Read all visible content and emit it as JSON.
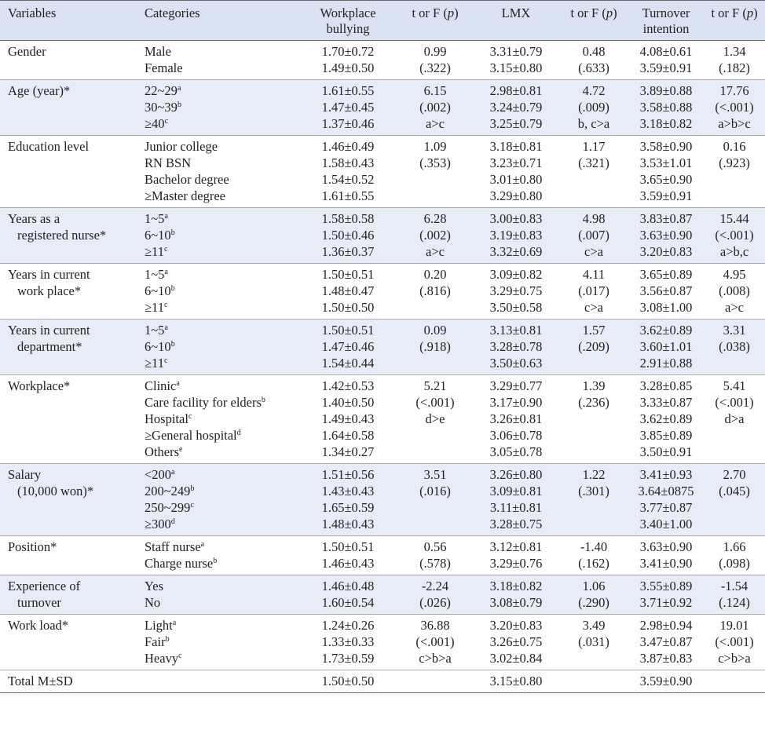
{
  "headers": {
    "variables": "Variables",
    "categories": "Categories",
    "bullying_1": "Workplace",
    "bullying_2": "bullying",
    "test1_pre": "t or F (",
    "test1_p": "p",
    "test1_post": ")",
    "lmx": "LMX",
    "test2_pre": "t or F (",
    "test2_p": "p",
    "test2_post": ")",
    "turnover_1": "Turnover",
    "turnover_2": "intention",
    "test3_pre": "t or F (",
    "test3_p": "p",
    "test3_post": ")"
  },
  "rows": [
    {
      "var": [
        "Gender"
      ],
      "cats": [
        {
          "t": "Male",
          "s": ""
        },
        {
          "t": "Female",
          "s": ""
        }
      ],
      "wb": [
        "1.70±0.72",
        "1.49±0.50"
      ],
      "t1": [
        "0.99",
        "(.322)"
      ],
      "lmx": [
        "3.31±0.79",
        "3.15±0.80"
      ],
      "t2": [
        "0.48",
        "(.633)"
      ],
      "ti": [
        "4.08±0.61",
        "3.59±0.91"
      ],
      "t3": [
        "1.34",
        "(.182)"
      ]
    },
    {
      "var": [
        "Age (year)*"
      ],
      "cats": [
        {
          "t": "22~29",
          "s": "a"
        },
        {
          "t": "30~39",
          "s": "b"
        },
        {
          "t": "≥40",
          "s": "c"
        }
      ],
      "wb": [
        "1.61±0.55",
        "1.47±0.45",
        "1.37±0.46"
      ],
      "t1": [
        "6.15",
        "(.002)",
        "a>c"
      ],
      "lmx": [
        "2.98±0.81",
        "3.24±0.79",
        "3.25±0.79"
      ],
      "t2": [
        "4.72",
        "(.009)",
        "b, c>a"
      ],
      "ti": [
        "3.89±0.88",
        "3.58±0.88",
        "3.18±0.82"
      ],
      "t3": [
        "17.76",
        "(<.001)",
        "a>b>c"
      ]
    },
    {
      "var": [
        "Education level"
      ],
      "cats": [
        {
          "t": "Junior college",
          "s": ""
        },
        {
          "t": "RN BSN",
          "s": ""
        },
        {
          "t": "Bachelor degree",
          "s": ""
        },
        {
          "t": "≥Master degree",
          "s": ""
        }
      ],
      "wb": [
        "1.46±0.49",
        "1.58±0.43",
        "1.54±0.52",
        "1.61±0.55"
      ],
      "t1": [
        "1.09",
        "(.353)"
      ],
      "lmx": [
        "3.18±0.81",
        "3.23±0.71",
        "3.01±0.80",
        "3.29±0.80"
      ],
      "t2": [
        "1.17",
        "(.321)"
      ],
      "ti": [
        "3.58±0.90",
        "3.53±1.01",
        "3.65±0.90",
        "3.59±0.91"
      ],
      "t3": [
        "0.16",
        "(.923)"
      ]
    },
    {
      "var": [
        "Years as a",
        "registered nurse*"
      ],
      "cats": [
        {
          "t": "1~5",
          "s": "a"
        },
        {
          "t": "6~10",
          "s": "b"
        },
        {
          "t": "≥11",
          "s": "c"
        }
      ],
      "wb": [
        "1.58±0.58",
        "1.50±0.46",
        "1.36±0.37"
      ],
      "t1": [
        "6.28",
        "(.002)",
        "a>c"
      ],
      "lmx": [
        "3.00±0.83",
        "3.19±0.83",
        "3.32±0.69"
      ],
      "t2": [
        "4.98",
        "(.007)",
        "c>a"
      ],
      "ti": [
        "3.83±0.87",
        "3.63±0.90",
        "3.20±0.83"
      ],
      "t3": [
        "15.44",
        "(<.001)",
        "a>b,c"
      ]
    },
    {
      "var": [
        "Years in current",
        "work place*"
      ],
      "cats": [
        {
          "t": "1~5",
          "s": "a"
        },
        {
          "t": "6~10",
          "s": "b"
        },
        {
          "t": "≥11",
          "s": "c"
        }
      ],
      "wb": [
        "1.50±0.51",
        "1.48±0.47",
        "1.50±0.50"
      ],
      "t1": [
        "0.20",
        "(.816)"
      ],
      "lmx": [
        "3.09±0.82",
        "3.29±0.75",
        "3.50±0.58"
      ],
      "t2": [
        "4.11",
        "(.017)",
        "c>a"
      ],
      "ti": [
        "3.65±0.89",
        "3.56±0.87",
        "3.08±1.00"
      ],
      "t3": [
        "4.95",
        "(.008)",
        "a>c"
      ]
    },
    {
      "var": [
        "Years in current",
        "department*"
      ],
      "cats": [
        {
          "t": "1~5",
          "s": "a"
        },
        {
          "t": "6~10",
          "s": "b"
        },
        {
          "t": "≥11",
          "s": "c"
        }
      ],
      "wb": [
        "1.50±0.51",
        "1.47±0.46",
        "1.54±0.44"
      ],
      "t1": [
        "0.09",
        "(.918)"
      ],
      "lmx": [
        "3.13±0.81",
        "3.28±0.78",
        "3.50±0.63"
      ],
      "t2": [
        "1.57",
        "(.209)"
      ],
      "ti": [
        "3.62±0.89",
        "3.60±1.01",
        "2.91±0.88"
      ],
      "t3": [
        "3.31",
        "(.038)"
      ]
    },
    {
      "var": [
        "Workplace*"
      ],
      "cats": [
        {
          "t": "Clinic",
          "s": "a"
        },
        {
          "t": "Care facility for elders",
          "s": "b"
        },
        {
          "t": "Hospital",
          "s": "c"
        },
        {
          "t": "≥General hospital",
          "s": "d"
        },
        {
          "t": "Others",
          "s": "e"
        }
      ],
      "wb": [
        "1.42±0.53",
        "1.40±0.50",
        "1.49±0.43",
        "1.64±0.58",
        "1.34±0.27"
      ],
      "t1": [
        "5.21",
        "(<.001)",
        "d>e"
      ],
      "lmx": [
        "3.29±0.77",
        "3.17±0.90",
        "3.26±0.81",
        "3.06±0.78",
        "3.05±0.78"
      ],
      "t2": [
        "1.39",
        "(.236)"
      ],
      "ti": [
        "3.28±0.85",
        "3.33±0.87",
        "3.62±0.89",
        "3.85±0.89",
        "3.50±0.91"
      ],
      "t3": [
        "5.41",
        "(<.001)",
        "d>a"
      ]
    },
    {
      "var": [
        "Salary",
        "(10,000 won)*"
      ],
      "cats": [
        {
          "t": "<200",
          "s": "a"
        },
        {
          "t": "200~249",
          "s": "b"
        },
        {
          "t": "250~299",
          "s": "c"
        },
        {
          "t": "≥300",
          "s": "d"
        }
      ],
      "wb": [
        "1.51±0.56",
        "1.43±0.43",
        "1.65±0.59",
        "1.48±0.43"
      ],
      "t1": [
        "3.51",
        "(.016)"
      ],
      "lmx": [
        "3.26±0.80",
        "3.09±0.81",
        "3.11±0.81",
        "3.28±0.75"
      ],
      "t2": [
        "1.22",
        "(.301)"
      ],
      "ti": [
        "3.41±0.93",
        "3.64±0875",
        "3.77±0.87",
        "3.40±1.00"
      ],
      "t3": [
        "2.70",
        "(.045)"
      ]
    },
    {
      "var": [
        "Position*"
      ],
      "cats": [
        {
          "t": "Staff nurse",
          "s": "a"
        },
        {
          "t": "Charge nurse",
          "s": "b"
        }
      ],
      "wb": [
        "1.50±0.51",
        "1.46±0.43"
      ],
      "t1": [
        "0.56",
        "(.578)"
      ],
      "lmx": [
        "3.12±0.81",
        "3.29±0.76"
      ],
      "t2": [
        "-1.40",
        "(.162)"
      ],
      "ti": [
        "3.63±0.90",
        "3.41±0.90"
      ],
      "t3": [
        "1.66",
        "(.098)"
      ]
    },
    {
      "var": [
        "Experience of",
        "turnover"
      ],
      "cats": [
        {
          "t": "Yes",
          "s": ""
        },
        {
          "t": "No",
          "s": ""
        }
      ],
      "wb": [
        "1.46±0.48",
        "1.60±0.54"
      ],
      "t1": [
        "-2.24",
        "(.026)"
      ],
      "lmx": [
        "3.18±0.82",
        "3.08±0.79"
      ],
      "t2": [
        "1.06",
        "(.290)"
      ],
      "ti": [
        "3.55±0.89",
        "3.71±0.92"
      ],
      "t3": [
        "-1.54",
        "(.124)"
      ]
    },
    {
      "var": [
        "Work load*"
      ],
      "cats": [
        {
          "t": "Light",
          "s": "a"
        },
        {
          "t": "Fair",
          "s": "b"
        },
        {
          "t": "Heavy",
          "s": "c"
        }
      ],
      "wb": [
        "1.24±0.26",
        "1.33±0.33",
        "1.73±0.59"
      ],
      "t1": [
        "36.88",
        "(<.001)",
        "c>b>a"
      ],
      "lmx": [
        "3.20±0.83",
        "3.26±0.75",
        "3.02±0.84"
      ],
      "t2": [
        "3.49",
        "(.031)"
      ],
      "ti": [
        "2.98±0.94",
        "3.47±0.87",
        "3.87±0.83"
      ],
      "t3": [
        "19.01",
        "(<.001)",
        "c>b>a"
      ]
    }
  ],
  "total": {
    "label": "Total M±SD",
    "wb": "1.50±0.50",
    "lmx": "3.15±0.80",
    "ti": "3.59±0.90"
  }
}
